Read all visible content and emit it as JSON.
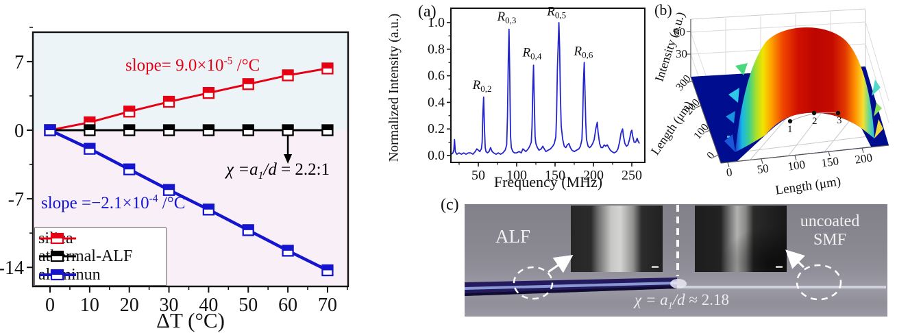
{
  "chart_data": [
    {
      "id": "thermal-response-chart",
      "type": "line",
      "xlabel": "ΔT (°C)",
      "xticks": [
        0,
        10,
        20,
        30,
        40,
        50,
        60,
        70
      ],
      "x_minor_ticks": [
        5,
        15,
        25,
        35,
        45,
        55,
        65,
        75
      ],
      "yticks": [
        7,
        0,
        -7,
        -14
      ],
      "y_minor_ticks": [
        10.5,
        3.5,
        -3.5,
        -10.5
      ],
      "xlim": [
        -4.3,
        75.2
      ],
      "ylim": [
        -15.9,
        10.0
      ],
      "bg_upper": "#edf4f8",
      "bg_lower": "#f9eff6",
      "x": [
        0,
        10,
        20,
        30,
        40,
        50,
        60,
        70
      ],
      "series": [
        {
          "name": "silica",
          "color": "#e60014",
          "values": [
            0,
            0.8,
            1.9,
            2.9,
            3.8,
            4.7,
            5.6,
            6.3
          ],
          "slope_annotation": {
            "prefix": "slope= 9.0×10",
            "sup": "-5",
            "suffix": " /°C"
          }
        },
        {
          "name": "athermal-ALF",
          "color": "#000000",
          "values": [
            0,
            0,
            0,
            0,
            0,
            0,
            0,
            0
          ]
        },
        {
          "name": "aluminun",
          "color": "#1515cf",
          "values": [
            0,
            -1.9,
            -4.0,
            -6.1,
            -8.1,
            -10.2,
            -12.3,
            -14.3
          ],
          "slope_annotation": {
            "prefix": "slope =−2.1×10",
            "sup": "-4",
            "suffix": " /°C"
          }
        }
      ],
      "annotations": {
        "ratio": {
          "italic1": "χ =a",
          "sub": "1",
          "italic2": "/d",
          "rest": " = 2.2:1",
          "arrow_x": 60
        }
      },
      "legend": [
        "silica",
        "athermal-ALF",
        "aluminun"
      ],
      "legend_position": "lower-left"
    },
    {
      "id": "acoustic-spectrum-chart",
      "panel_label": "(a)",
      "type": "line",
      "xlabel": "Frequency (MHz)",
      "ylabel": "Normalized Intensity (a.u.)",
      "xticks": [
        50,
        100,
        150,
        200,
        250
      ],
      "x_minor_ticks": [
        25,
        75,
        125,
        175,
        225
      ],
      "yticks": [
        0.0,
        0.2,
        0.4,
        0.6,
        0.8,
        1.0
      ],
      "xlim": [
        14.3,
        267
      ],
      "ylim": [
        -0.05,
        1.11
      ],
      "line_color": "#2424cc",
      "peak_labels": [
        {
          "text": "R",
          "sub": "0,2",
          "x": 55,
          "y": 0.5
        },
        {
          "text": "R",
          "sub": "0,3",
          "x": 87,
          "y": 1.015
        },
        {
          "text": "R",
          "sub": "0,4",
          "x": 120,
          "y": 0.745
        },
        {
          "text": "R",
          "sub": "0,5",
          "x": 152,
          "y": 1.055
        },
        {
          "text": "R",
          "sub": "0,6",
          "x": 187,
          "y": 0.755
        }
      ],
      "points": [
        [
          15,
          0.01
        ],
        [
          17,
          0.02
        ],
        [
          18,
          0.04
        ],
        [
          19,
          0.12
        ],
        [
          20,
          0.03
        ],
        [
          22,
          0.01
        ],
        [
          25,
          0.02
        ],
        [
          28,
          0.01
        ],
        [
          31,
          0.02
        ],
        [
          34,
          0.01
        ],
        [
          37,
          0.02
        ],
        [
          40,
          0.02
        ],
        [
          43,
          0.01
        ],
        [
          46,
          0.03
        ],
        [
          48,
          0.05
        ],
        [
          50,
          0.04
        ],
        [
          52,
          0.03
        ],
        [
          54,
          0.05
        ],
        [
          55,
          0.1
        ],
        [
          56,
          0.32
        ],
        [
          57,
          0.44
        ],
        [
          58,
          0.2
        ],
        [
          59,
          0.06
        ],
        [
          60,
          0.03
        ],
        [
          62,
          0.02
        ],
        [
          64,
          0.03
        ],
        [
          66,
          0.06
        ],
        [
          68,
          0.03
        ],
        [
          70,
          0.02
        ],
        [
          73,
          0.01
        ],
        [
          76,
          0.02
        ],
        [
          79,
          0.01
        ],
        [
          82,
          0.02
        ],
        [
          85,
          0.04
        ],
        [
          87,
          0.08
        ],
        [
          88,
          0.3
        ],
        [
          89,
          0.7
        ],
        [
          90,
          0.95
        ],
        [
          91,
          0.6
        ],
        [
          92,
          0.15
        ],
        [
          93,
          0.06
        ],
        [
          95,
          0.03
        ],
        [
          97,
          0.02
        ],
        [
          100,
          0.02
        ],
        [
          103,
          0.03
        ],
        [
          106,
          0.02
        ],
        [
          108,
          0.05
        ],
        [
          110,
          0.04
        ],
        [
          112,
          0.03
        ],
        [
          115,
          0.05
        ],
        [
          117,
          0.07
        ],
        [
          119,
          0.1
        ],
        [
          120,
          0.22
        ],
        [
          121,
          0.5
        ],
        [
          122,
          0.68
        ],
        [
          123,
          0.38
        ],
        [
          124,
          0.14
        ],
        [
          125,
          0.09
        ],
        [
          127,
          0.06
        ],
        [
          129,
          0.04
        ],
        [
          132,
          0.05
        ],
        [
          134,
          0.07
        ],
        [
          136,
          0.05
        ],
        [
          138,
          0.03
        ],
        [
          141,
          0.04
        ],
        [
          144,
          0.05
        ],
        [
          147,
          0.07
        ],
        [
          149,
          0.09
        ],
        [
          151,
          0.14
        ],
        [
          152,
          0.3
        ],
        [
          153,
          0.65
        ],
        [
          155,
          1.0
        ],
        [
          156,
          0.8
        ],
        [
          157,
          0.45
        ],
        [
          158,
          0.22
        ],
        [
          160,
          0.12
        ],
        [
          162,
          0.07
        ],
        [
          164,
          0.06
        ],
        [
          166,
          0.08
        ],
        [
          168,
          0.09
        ],
        [
          170,
          0.06
        ],
        [
          172,
          0.04
        ],
        [
          175,
          0.03
        ],
        [
          178,
          0.04
        ],
        [
          181,
          0.05
        ],
        [
          183,
          0.07
        ],
        [
          185,
          0.12
        ],
        [
          186,
          0.28
        ],
        [
          187,
          0.55
        ],
        [
          188,
          0.7
        ],
        [
          189,
          0.48
        ],
        [
          190,
          0.25
        ],
        [
          191,
          0.12
        ],
        [
          193,
          0.07
        ],
        [
          195,
          0.06
        ],
        [
          197,
          0.07
        ],
        [
          199,
          0.09
        ],
        [
          201,
          0.12
        ],
        [
          203,
          0.2
        ],
        [
          205,
          0.25
        ],
        [
          206,
          0.18
        ],
        [
          208,
          0.09
        ],
        [
          210,
          0.06
        ],
        [
          212,
          0.06
        ],
        [
          214,
          0.08
        ],
        [
          216,
          0.07
        ],
        [
          218,
          0.08
        ],
        [
          220,
          0.06
        ],
        [
          222,
          0.04
        ],
        [
          224,
          0.03
        ],
        [
          227,
          0.02
        ],
        [
          230,
          0.03
        ],
        [
          232,
          0.05
        ],
        [
          234,
          0.1
        ],
        [
          236,
          0.17
        ],
        [
          238,
          0.2
        ],
        [
          239,
          0.15
        ],
        [
          241,
          0.09
        ],
        [
          243,
          0.07
        ],
        [
          245,
          0.08
        ],
        [
          247,
          0.12
        ],
        [
          249,
          0.18
        ],
        [
          250,
          0.19
        ],
        [
          251,
          0.15
        ],
        [
          253,
          0.1
        ],
        [
          255,
          0.1
        ],
        [
          257,
          0.13
        ],
        [
          258,
          0.11
        ],
        [
          260,
          0.09
        ]
      ]
    },
    {
      "id": "surface-3d-chart",
      "panel_label": "(b)",
      "type": "surface",
      "zlabel": "Intensity (a.u.)",
      "zticks": [
        60,
        30
      ],
      "ylabel": "Length (μm)",
      "yticks": [
        300,
        200,
        100,
        0
      ],
      "xlabel": "Length (μm)",
      "xticks": [
        0,
        50,
        100,
        150,
        200
      ],
      "point_labels": [
        "1",
        "2",
        "3"
      ],
      "base_color": "#000d8f",
      "colormap": "jet",
      "description": "dome-shaped intensity surface, red center with rainbow edges over dark blue base"
    }
  ],
  "photo_panel": {
    "panel_label": "(c)",
    "alf_label": "ALF",
    "smf_label_line1": "uncoated",
    "smf_label_line2": "SMF",
    "chi_annotation": {
      "italic1": "χ = a",
      "sub": "1",
      "italic2": "/d",
      "rest": " ≈ 2.18"
    }
  }
}
